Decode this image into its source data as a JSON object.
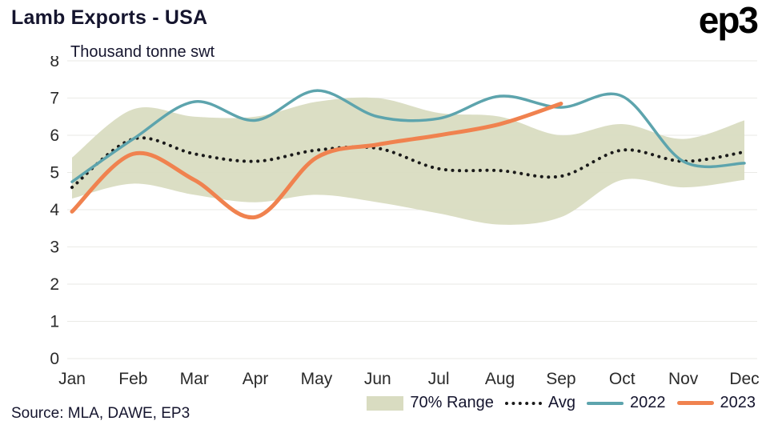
{
  "header": {
    "title": "Lamb Exports - USA",
    "logo": "ep3"
  },
  "source": "Source: MLA, DAWE, EP3",
  "chart_data": {
    "type": "line",
    "title": "Lamb Exports - USA",
    "subtitle_unit": "Thousand tonne swt",
    "categories": [
      "Jan",
      "Feb",
      "Mar",
      "Apr",
      "May",
      "Jun",
      "Jul",
      "Aug",
      "Sep",
      "Oct",
      "Nov",
      "Dec"
    ],
    "y_ticks": [
      0,
      1,
      2,
      3,
      4,
      5,
      6,
      7,
      8
    ],
    "ylim": [
      0,
      8
    ],
    "grid": true,
    "legend_position": "bottom",
    "band": {
      "name": "70% Range",
      "color": "#d9dcc1",
      "upper": [
        5.4,
        6.7,
        6.5,
        6.5,
        6.9,
        7.0,
        6.6,
        6.5,
        6.0,
        6.3,
        5.9,
        6.4
      ],
      "lower": [
        4.3,
        4.7,
        4.4,
        4.2,
        4.4,
        4.2,
        3.9,
        3.6,
        3.8,
        4.8,
        4.6,
        4.8
      ]
    },
    "series": [
      {
        "name": "Avg",
        "style": "dotted",
        "color": "#1a1a1a",
        "width": 4,
        "values": [
          4.6,
          5.9,
          5.5,
          5.3,
          5.6,
          5.65,
          5.1,
          5.05,
          4.9,
          5.6,
          5.3,
          5.55
        ]
      },
      {
        "name": "2022",
        "style": "solid",
        "color": "#5da4ad",
        "width": 3.5,
        "values": [
          4.75,
          5.9,
          6.9,
          6.4,
          7.2,
          6.5,
          6.45,
          7.05,
          6.75,
          7.05,
          5.3,
          5.25
        ]
      },
      {
        "name": "2023",
        "style": "solid",
        "color": "#f0824f",
        "width": 5,
        "values": [
          3.95,
          5.5,
          4.8,
          3.8,
          5.4,
          5.75,
          6.0,
          6.3,
          6.85
        ]
      }
    ]
  }
}
